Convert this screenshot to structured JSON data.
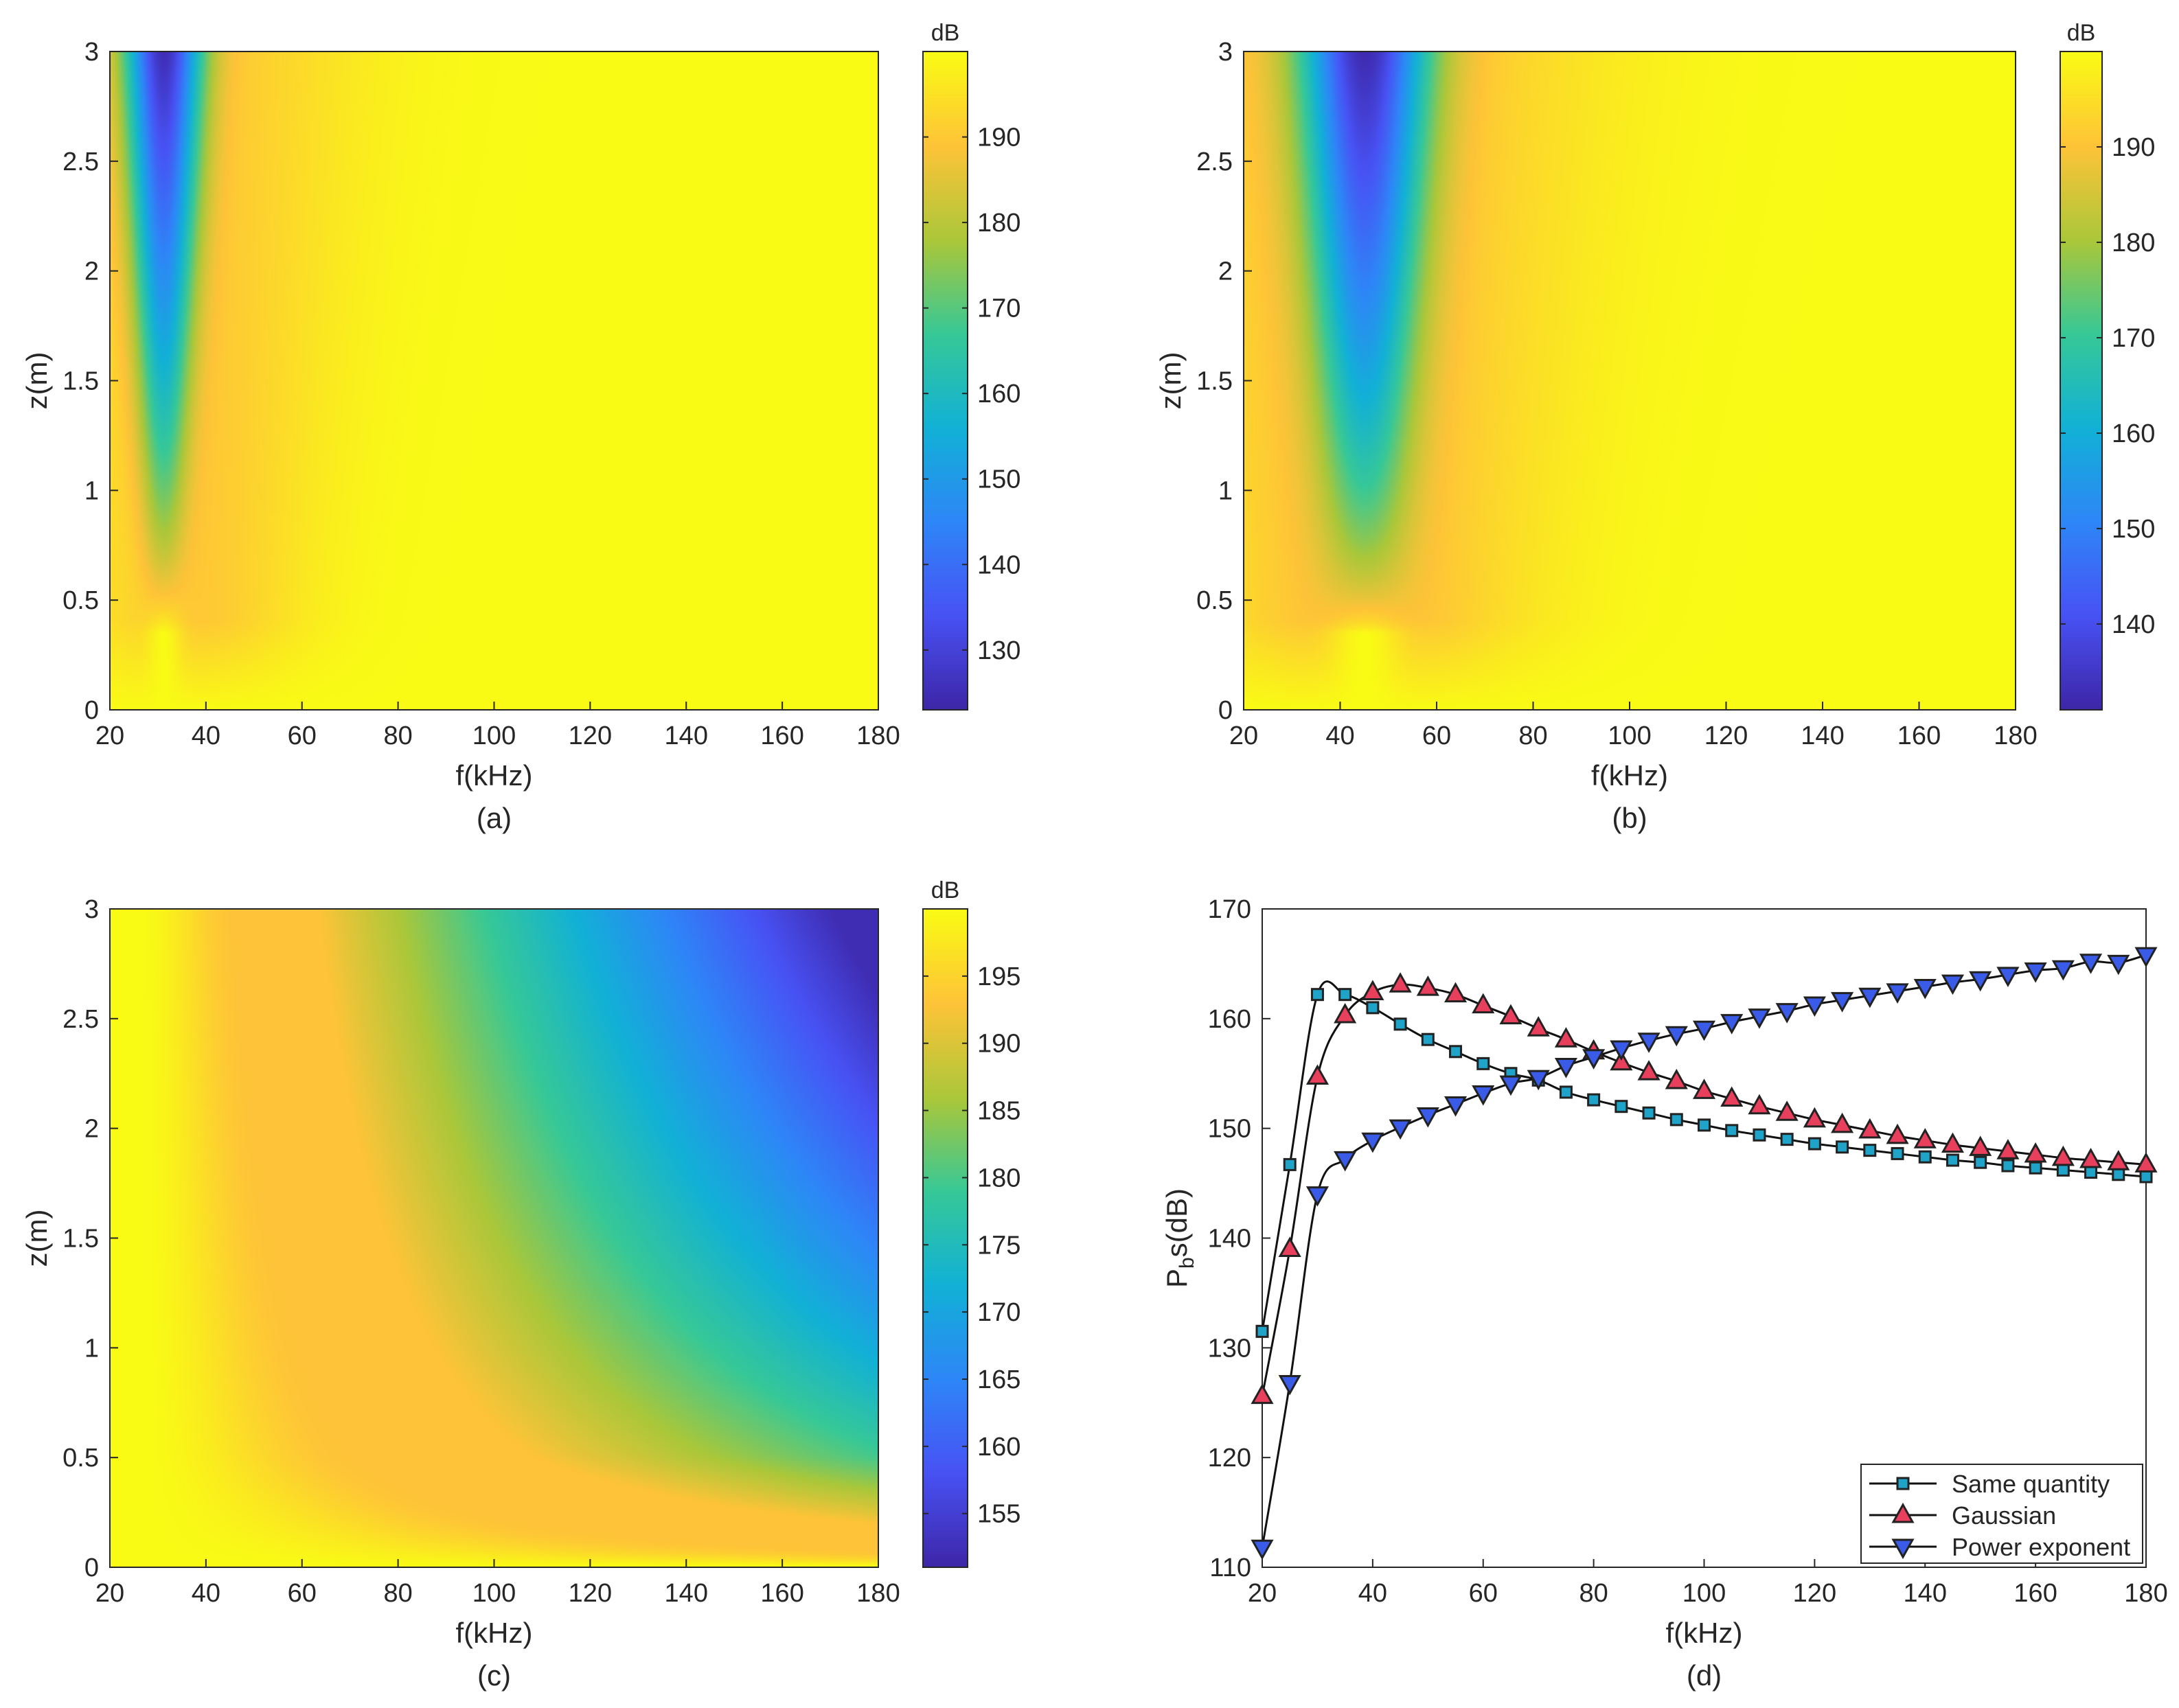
{
  "chart_data": [
    {
      "type": "heatmap",
      "panel_label": "(a)",
      "xlabel": "f(kHz)",
      "ylabel": "z(m)",
      "xlim": [
        20,
        180
      ],
      "ylim": [
        0,
        3
      ],
      "xticks": [
        "20",
        "40",
        "60",
        "80",
        "100",
        "120",
        "140",
        "160",
        "180"
      ],
      "yticks": [
        "0",
        "0.5",
        "1",
        "1.5",
        "2",
        "2.5",
        "3"
      ],
      "colorbar": {
        "unit": "dB",
        "range": [
          123,
          200
        ],
        "ticks": [
          "130",
          "140",
          "150",
          "160",
          "170",
          "180",
          "190"
        ]
      }
    },
    {
      "type": "heatmap",
      "panel_label": "(b)",
      "xlabel": "f(kHz)",
      "ylabel": "z(m)",
      "xlim": [
        20,
        180
      ],
      "ylim": [
        0,
        3
      ],
      "xticks": [
        "20",
        "40",
        "60",
        "80",
        "100",
        "120",
        "140",
        "160",
        "180"
      ],
      "yticks": [
        "0",
        "0.5",
        "1",
        "1.5",
        "2",
        "2.5",
        "3"
      ],
      "colorbar": {
        "unit": "dB",
        "range": [
          131,
          200
        ],
        "ticks": [
          "140",
          "150",
          "160",
          "170",
          "180",
          "190"
        ]
      }
    },
    {
      "type": "heatmap",
      "panel_label": "(c)",
      "xlabel": "f(kHz)",
      "ylabel": "z(m)",
      "xlim": [
        20,
        180
      ],
      "ylim": [
        0,
        3
      ],
      "xticks": [
        "20",
        "40",
        "60",
        "80",
        "100",
        "120",
        "140",
        "160",
        "180"
      ],
      "yticks": [
        "0",
        "0.5",
        "1",
        "1.5",
        "2",
        "2.5",
        "3"
      ],
      "colorbar": {
        "unit": "dB",
        "range": [
          151,
          200
        ],
        "ticks": [
          "155",
          "160",
          "165",
          "170",
          "175",
          "180",
          "185",
          "190",
          "195"
        ]
      }
    },
    {
      "type": "line",
      "panel_label": "(d)",
      "xlabel": "f(kHz)",
      "ylabel_main": "P",
      "ylabel_sub": "b",
      "ylabel_rest": "s(dB)",
      "xlim": [
        20,
        180
      ],
      "ylim": [
        110,
        170
      ],
      "xticks": [
        "20",
        "40",
        "60",
        "80",
        "100",
        "120",
        "140",
        "160",
        "180"
      ],
      "yticks": [
        "110",
        "120",
        "130",
        "140",
        "150",
        "160",
        "170"
      ],
      "legend_position": "bottom-right",
      "x": [
        20,
        25,
        30,
        35,
        40,
        45,
        50,
        55,
        60,
        65,
        70,
        75,
        80,
        85,
        90,
        95,
        100,
        105,
        110,
        115,
        120,
        125,
        130,
        135,
        140,
        145,
        150,
        155,
        160,
        165,
        170,
        175,
        180
      ],
      "series": [
        {
          "name": "Same quantity",
          "marker": "square",
          "color": "#1fa3c8",
          "values": [
            131.5,
            146.7,
            162.2,
            162.2,
            161,
            159.5,
            158.1,
            157,
            155.9,
            155,
            154.4,
            153.3,
            152.6,
            152,
            151.4,
            150.8,
            150.3,
            149.8,
            149.4,
            149,
            148.6,
            148.3,
            148,
            147.7,
            147.4,
            147.1,
            146.9,
            146.6,
            146.4,
            146.2,
            146,
            145.8,
            145.6
          ]
        },
        {
          "name": "Gaussian",
          "marker": "triangle-up",
          "color": "#e8405c",
          "values": [
            125.6,
            139,
            154.7,
            160.3,
            162.4,
            163.1,
            162.8,
            162.2,
            161.2,
            160.2,
            159.1,
            158.1,
            157,
            156,
            155.1,
            154.3,
            153.4,
            152.7,
            152,
            151.4,
            150.8,
            150.3,
            149.8,
            149.3,
            148.9,
            148.5,
            148.2,
            147.9,
            147.6,
            147.3,
            147.1,
            146.9,
            146.7
          ]
        },
        {
          "name": "Power exponent",
          "marker": "triangle-down",
          "color": "#3a5be8",
          "values": [
            111.8,
            126.8,
            144,
            147.2,
            148.9,
            150.1,
            151.2,
            152.2,
            153.2,
            154.1,
            154.6,
            155.7,
            156.5,
            157.3,
            158,
            158.6,
            159.1,
            159.7,
            160.2,
            160.7,
            161.3,
            161.7,
            162.1,
            162.5,
            162.9,
            163.3,
            163.6,
            164,
            164.4,
            164.6,
            165.2,
            165.1,
            165.8
          ]
        }
      ]
    }
  ]
}
